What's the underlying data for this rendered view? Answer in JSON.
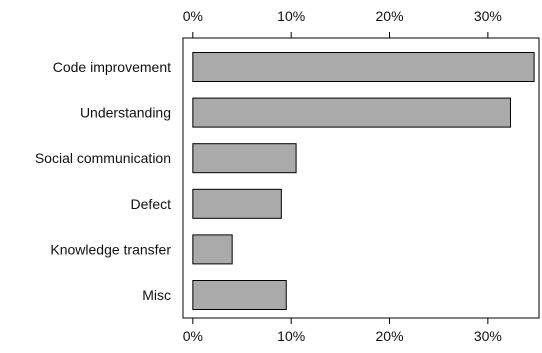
{
  "chart_data": {
    "type": "bar",
    "orientation": "horizontal",
    "categories": [
      "Code improvement",
      "Understanding",
      "Social communication",
      "Defect",
      "Knowledge transfer",
      "Misc"
    ],
    "values": [
      34.7,
      32.3,
      10.5,
      9.0,
      4.0,
      9.5
    ],
    "xlim": [
      -1,
      35.2
    ],
    "x_ticks": [
      0,
      10,
      20,
      30
    ],
    "x_tick_labels": [
      "0%",
      "10%",
      "20%",
      "30%"
    ],
    "tick_label_position": "top-and-bottom",
    "grid": false,
    "title": "",
    "xlabel": "",
    "ylabel": "",
    "bar_color": "#aaaaaa"
  }
}
